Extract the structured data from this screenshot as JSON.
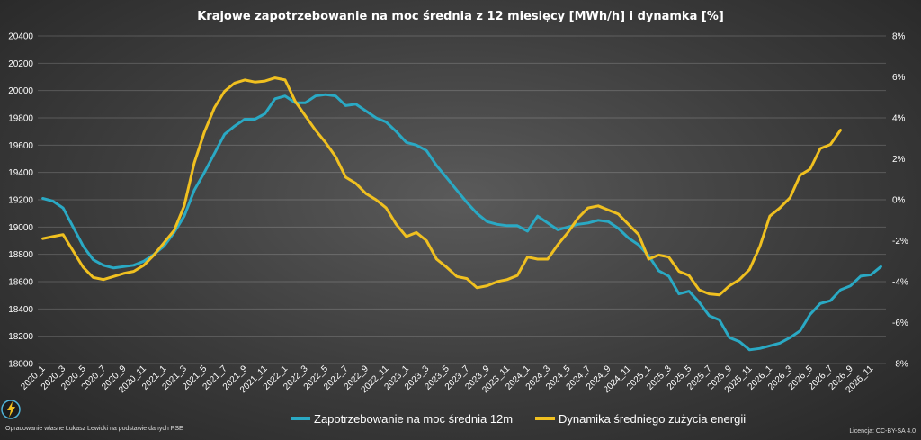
{
  "chart_data": {
    "type": "line",
    "title": "Krajowe zapotrzebowanie na moc średnia z 12 miesięcy [MWh/h] i dynamka [%]",
    "x_tick_labels": [
      "2020_1",
      "2020_3",
      "2020_5",
      "2020_7",
      "2020_9",
      "2020_11",
      "2021_1",
      "2021_3",
      "2021_5",
      "2021_7",
      "2021_9",
      "2021_11",
      "2022_1",
      "2022_3",
      "2022_5",
      "2022_7",
      "2022_9",
      "2022_11",
      "2023_1",
      "2023_3",
      "2023_5",
      "2023_7",
      "2023_9",
      "2023_11",
      "2024_1",
      "2024_3",
      "2024_5",
      "2024_7",
      "2024_9",
      "2024_11",
      "2025_1",
      "2025_3",
      "2025_5",
      "2025_7",
      "2025_9",
      "2025_11",
      "2026_1",
      "2026_3",
      "2026_5",
      "2026_7",
      "2026_9",
      "2026_11"
    ],
    "y_left": {
      "ticks": [
        "20400",
        "20200",
        "20000",
        "19800",
        "19600",
        "19400",
        "19200",
        "19000",
        "18800",
        "18600",
        "18400",
        "18200",
        "18000"
      ],
      "range": [
        18000,
        20400
      ]
    },
    "y_right": {
      "ticks": [
        "8%",
        "6%",
        "4%",
        "2%",
        "0%",
        "-2%",
        "-4%",
        "-6%",
        "-8%"
      ],
      "range": [
        -8,
        8
      ]
    },
    "grid": true,
    "legend": {
      "position": "bottom"
    },
    "series": [
      {
        "name": "Zapotrzebowanie na moc średnia 12m",
        "axis": "left",
        "color": "#2aa9c4",
        "values": [
          19210,
          19190,
          19140,
          19000,
          18860,
          18760,
          18720,
          18700,
          18710,
          18720,
          18750,
          18800,
          18860,
          18960,
          19080,
          19270,
          19400,
          19540,
          19680,
          19740,
          19790,
          19790,
          19830,
          19940,
          19960,
          19910,
          19910,
          19960,
          19970,
          19960,
          19890,
          19900,
          19850,
          19800,
          19770,
          19700,
          19620,
          19600,
          19560,
          19450,
          19360,
          19270,
          19180,
          19100,
          19040,
          19020,
          19010,
          19010,
          18970,
          19080,
          19030,
          18980,
          19000,
          19020,
          19030,
          19050,
          19040,
          18990,
          18920,
          18870,
          18790,
          18680,
          18640,
          18510,
          18530,
          18450,
          18350,
          18320,
          18190,
          18160,
          18100,
          18110,
          18130,
          18150,
          18190,
          18240,
          18360,
          18440,
          18460,
          18540,
          18570,
          18640,
          18650,
          18710
        ]
      },
      {
        "name": "Dynamika średniego zużycia energii",
        "axis": "right",
        "color": "#f0c020",
        "values": [
          -1.9,
          -1.8,
          -1.7,
          -2.5,
          -3.3,
          -3.8,
          -3.9,
          -3.75,
          -3.6,
          -3.5,
          -3.2,
          -2.7,
          -2.1,
          -1.5,
          -0.3,
          1.8,
          3.3,
          4.5,
          5.3,
          5.7,
          5.85,
          5.75,
          5.8,
          5.95,
          5.85,
          4.8,
          4.1,
          3.4,
          2.8,
          2.1,
          1.1,
          0.8,
          0.3,
          0.0,
          -0.4,
          -1.2,
          -1.8,
          -1.6,
          -2.0,
          -2.9,
          -3.3,
          -3.75,
          -3.85,
          -4.3,
          -4.2,
          -4.0,
          -3.9,
          -3.7,
          -2.8,
          -2.9,
          -2.9,
          -2.2,
          -1.6,
          -0.9,
          -0.4,
          -0.3,
          -0.5,
          -0.7,
          -1.2,
          -1.7,
          -2.9,
          -2.7,
          -2.8,
          -3.5,
          -3.7,
          -4.4,
          -4.6,
          -4.65,
          -4.2,
          -3.9,
          -3.4,
          -2.3,
          -0.8,
          -0.4,
          0.1,
          1.2,
          1.5,
          2.5,
          2.7,
          3.4
        ]
      }
    ]
  },
  "footer": {
    "credit": "Opracowanie własne Łukasz Lewicki na podstawie danych PSE",
    "license": "Licencja: CC-BY-SA 4.0"
  }
}
